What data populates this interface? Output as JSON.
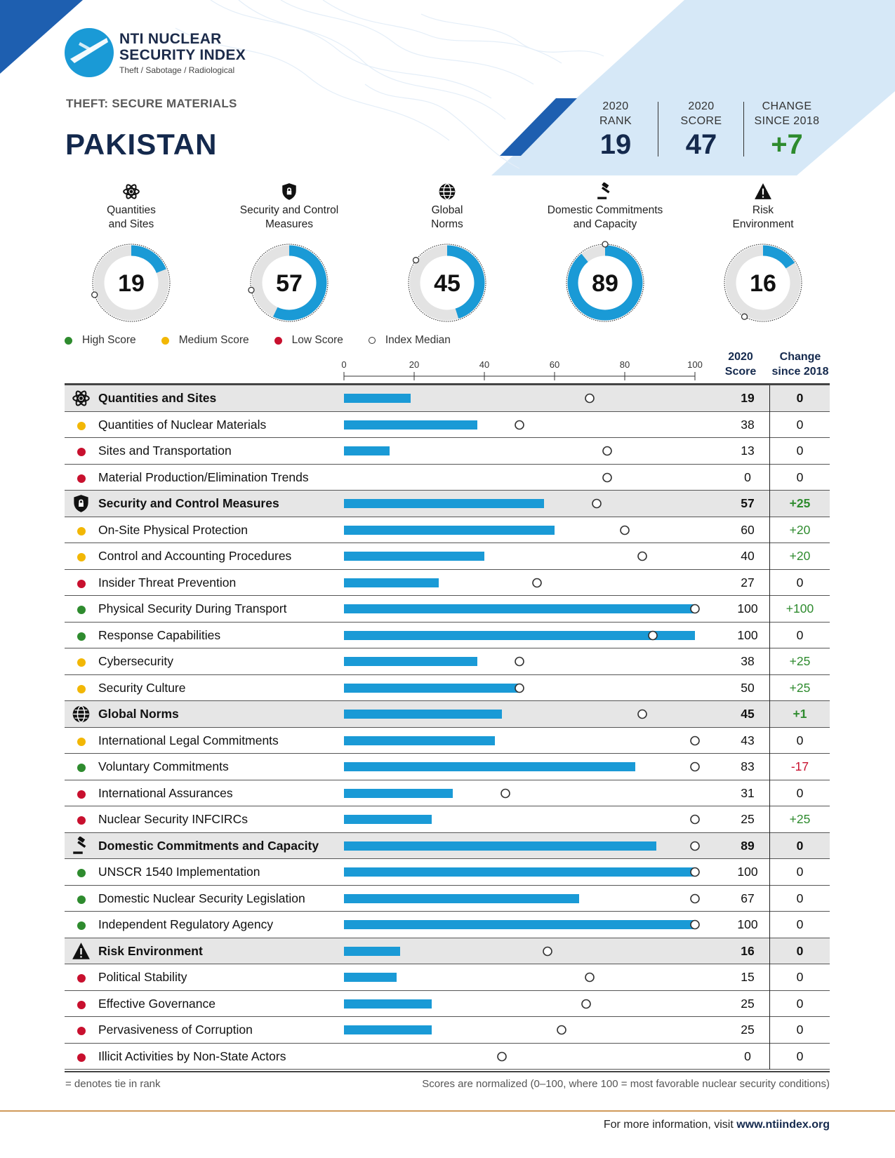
{
  "logo": {
    "title_line1": "NTI NUCLEAR",
    "title_line2": "SECURITY INDEX",
    "subtitle": "Theft / Sabotage / Radiological"
  },
  "section_label": "THEFT: SECURE MATERIALS",
  "country": "PAKISTAN",
  "summary": [
    {
      "label": "2020\nRANK",
      "value": "19",
      "style": "neutral"
    },
    {
      "label": "2020\nSCORE",
      "value": "47",
      "style": "neutral"
    },
    {
      "label": "CHANGE\nSINCE 2018",
      "value": "+7",
      "style": "positive"
    }
  ],
  "categories": [
    {
      "name": "Quantities\nand Sites",
      "icon": "atom-icon",
      "score": 19,
      "median": 70
    },
    {
      "name": "Security and Control\nMeasures",
      "icon": "shield-icon",
      "score": 57,
      "median": 72
    },
    {
      "name": "Global\nNorms",
      "icon": "globe-icon",
      "score": 45,
      "median": 85
    },
    {
      "name": "Domestic Commitments\nand Capacity",
      "icon": "gavel-icon",
      "score": 89,
      "median": 100
    },
    {
      "name": "Risk\nEnvironment",
      "icon": "warning-icon",
      "score": 16,
      "median": 58
    }
  ],
  "legend": [
    {
      "label": "High Score",
      "color": "#2e8b2e",
      "type": "dot"
    },
    {
      "label": "Medium Score",
      "color": "#f2b705",
      "type": "dot"
    },
    {
      "label": "Low Score",
      "color": "#c8102e",
      "type": "dot"
    },
    {
      "label": "Index Median",
      "color": "#ffffff",
      "type": "ring"
    }
  ],
  "columns": {
    "score": "2020\nScore",
    "change": "Change\nsince 2018"
  },
  "colors": {
    "bar": "#1a9ad6",
    "high": "#2e8b2e",
    "medium": "#f2b705",
    "low": "#c8102e",
    "navy": "#14294d"
  },
  "chart_data": {
    "type": "bar",
    "xlim": [
      0,
      100
    ],
    "ticks": [
      0,
      20,
      40,
      60,
      80,
      100
    ],
    "rows": [
      {
        "label": "Quantities and Sites",
        "kind": "category",
        "icon": "atom-icon",
        "score": 19,
        "median": 70,
        "change": "0"
      },
      {
        "label": "Quantities of Nuclear Materials",
        "kind": "indicator",
        "level": "medium",
        "score": 38,
        "median": 50,
        "change": "0"
      },
      {
        "label": "Sites and Transportation",
        "kind": "indicator",
        "level": "low",
        "score": 13,
        "median": 75,
        "change": "0"
      },
      {
        "label": "Material Production/Elimination Trends",
        "kind": "indicator",
        "level": "low",
        "score": 0,
        "median": 75,
        "change": "0"
      },
      {
        "label": "Security and Control Measures",
        "kind": "category",
        "icon": "shield-icon",
        "score": 57,
        "median": 72,
        "change": "+25"
      },
      {
        "label": "On-Site Physical Protection",
        "kind": "indicator",
        "level": "medium",
        "score": 60,
        "median": 80,
        "change": "+20"
      },
      {
        "label": "Control and Accounting Procedures",
        "kind": "indicator",
        "level": "medium",
        "score": 40,
        "median": 85,
        "change": "+20"
      },
      {
        "label": "Insider Threat Prevention",
        "kind": "indicator",
        "level": "low",
        "score": 27,
        "median": 55,
        "change": "0"
      },
      {
        "label": "Physical Security During Transport",
        "kind": "indicator",
        "level": "high",
        "score": 100,
        "median": 100,
        "change": "+100"
      },
      {
        "label": "Response Capabilities",
        "kind": "indicator",
        "level": "high",
        "score": 100,
        "median": 88,
        "change": "0"
      },
      {
        "label": "Cybersecurity",
        "kind": "indicator",
        "level": "medium",
        "score": 38,
        "median": 50,
        "change": "+25"
      },
      {
        "label": "Security Culture",
        "kind": "indicator",
        "level": "medium",
        "score": 50,
        "median": 50,
        "change": "+25"
      },
      {
        "label": "Global Norms",
        "kind": "category",
        "icon": "globe-icon",
        "score": 45,
        "median": 85,
        "change": "+1"
      },
      {
        "label": "International Legal Commitments",
        "kind": "indicator",
        "level": "medium",
        "score": 43,
        "median": 100,
        "change": "0"
      },
      {
        "label": "Voluntary Commitments",
        "kind": "indicator",
        "level": "high",
        "score": 83,
        "median": 100,
        "change": "-17"
      },
      {
        "label": "International Assurances",
        "kind": "indicator",
        "level": "low",
        "score": 31,
        "median": 46,
        "change": "0"
      },
      {
        "label": "Nuclear Security INFCIRCs",
        "kind": "indicator",
        "level": "low",
        "score": 25,
        "median": 100,
        "change": "+25"
      },
      {
        "label": "Domestic Commitments and Capacity",
        "kind": "category",
        "icon": "gavel-icon",
        "score": 89,
        "median": 100,
        "change": "0"
      },
      {
        "label": "UNSCR 1540 Implementation",
        "kind": "indicator",
        "level": "high",
        "score": 100,
        "median": 100,
        "change": "0"
      },
      {
        "label": "Domestic Nuclear Security Legislation",
        "kind": "indicator",
        "level": "high",
        "score": 67,
        "median": 100,
        "change": "0"
      },
      {
        "label": "Independent Regulatory Agency",
        "kind": "indicator",
        "level": "high",
        "score": 100,
        "median": 100,
        "change": "0"
      },
      {
        "label": "Risk Environment",
        "kind": "category",
        "icon": "warning-icon",
        "score": 16,
        "median": 58,
        "change": "0"
      },
      {
        "label": "Political Stability",
        "kind": "indicator",
        "level": "low",
        "score": 15,
        "median": 70,
        "change": "0"
      },
      {
        "label": "Effective Governance",
        "kind": "indicator",
        "level": "low",
        "score": 25,
        "median": 69,
        "change": "0"
      },
      {
        "label": "Pervasiveness of Corruption",
        "kind": "indicator",
        "level": "low",
        "score": 25,
        "median": 62,
        "change": "0"
      },
      {
        "label": "Illicit Activities by Non-State Actors",
        "kind": "indicator",
        "level": "low",
        "score": 0,
        "median": 45,
        "change": "0"
      }
    ]
  },
  "footer": {
    "left": "= denotes tie in rank",
    "right": "Scores are normalized (0–100, where 100 = most favorable nuclear security conditions)",
    "info_prefix": "For more information, visit ",
    "info_link": "www.ntiindex.org"
  }
}
